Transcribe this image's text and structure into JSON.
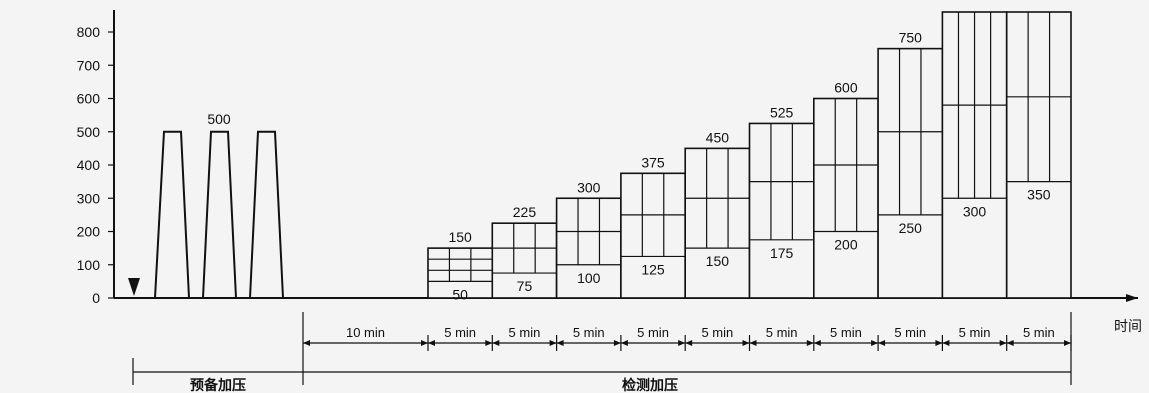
{
  "chart_data": {
    "type": "diagram",
    "y_ticks": [
      "0",
      "100",
      "200",
      "300",
      "400",
      "500",
      "600",
      "700",
      "800"
    ],
    "x_axis_label": "时间",
    "preload": {
      "peak_label": "500",
      "peak_value": 500,
      "cycles": 3
    },
    "steps": [
      {
        "upper": "150",
        "lower": "50",
        "upper_v": 150,
        "lower_v": 50,
        "grid_rows": 3,
        "grid_cols": 3
      },
      {
        "upper": "225",
        "lower": "75",
        "upper_v": 225,
        "lower_v": 75,
        "grid_rows": 2,
        "grid_cols": 3
      },
      {
        "upper": "300",
        "lower": "100",
        "upper_v": 300,
        "lower_v": 100,
        "grid_rows": 2,
        "grid_cols": 3
      },
      {
        "upper": "375",
        "lower": "125",
        "upper_v": 375,
        "lower_v": 125,
        "grid_rows": 2,
        "grid_cols": 3
      },
      {
        "upper": "450",
        "lower": "150",
        "upper_v": 450,
        "lower_v": 150,
        "grid_rows": 2,
        "grid_cols": 3
      },
      {
        "upper": "525",
        "lower": "175",
        "upper_v": 525,
        "lower_v": 175,
        "grid_rows": 2,
        "grid_cols": 3
      },
      {
        "upper": "600",
        "lower": "200",
        "upper_v": 600,
        "lower_v": 200,
        "grid_rows": 2,
        "grid_cols": 3
      },
      {
        "upper": "750",
        "lower": "250",
        "upper_v": 750,
        "lower_v": 250,
        "grid_rows": 2,
        "grid_cols": 3
      },
      {
        "upper": "",
        "lower": "300",
        "upper_v": 900,
        "lower_v": 300,
        "grid_rows": 2,
        "grid_cols": 4
      },
      {
        "upper": "",
        "lower": "350",
        "upper_v": 900,
        "lower_v": 350,
        "grid_rows": 2,
        "grid_cols": 3
      }
    ],
    "durations": {
      "first": "10 min",
      "step": "5 min"
    },
    "phases": {
      "preload": "预备加压",
      "test": "检测加压"
    }
  }
}
